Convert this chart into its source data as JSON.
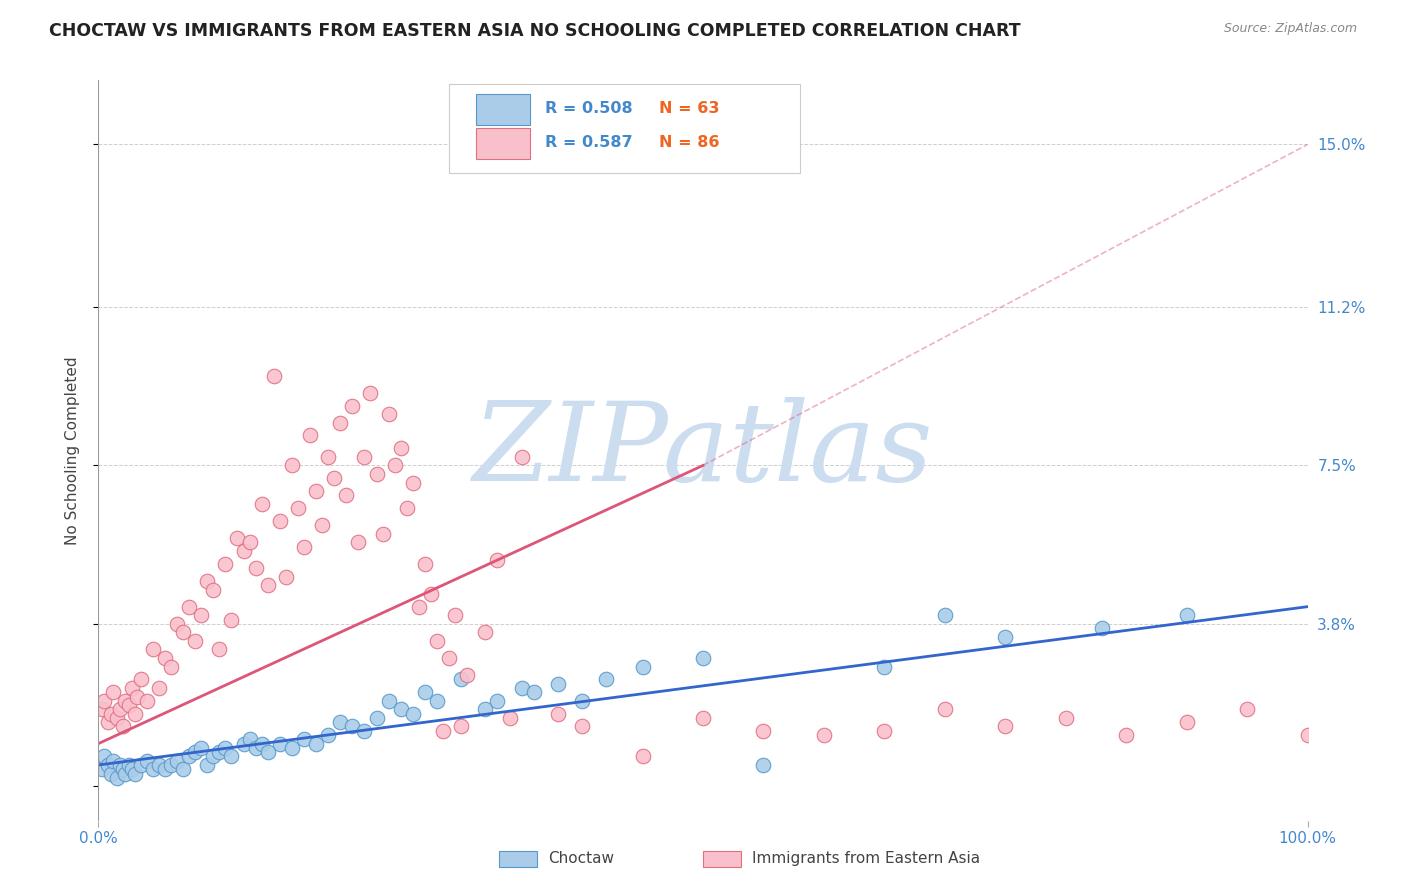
{
  "title": "CHOCTAW VS IMMIGRANTS FROM EASTERN ASIA NO SCHOOLING COMPLETED CORRELATION CHART",
  "source_text": "Source: ZipAtlas.com",
  "ylabel": "No Schooling Completed",
  "xlim": [
    0,
    100
  ],
  "ylim": [
    -0.8,
    16.5
  ],
  "yticks": [
    0.0,
    3.8,
    7.5,
    11.2,
    15.0
  ],
  "ytick_labels": [
    "",
    "3.8%",
    "7.5%",
    "11.2%",
    "15.0%"
  ],
  "xtick_labels": [
    "0.0%",
    "100.0%"
  ],
  "series": [
    {
      "name": "Choctaw",
      "R": "0.508",
      "N": 63,
      "dot_color": "#aacce8",
      "dot_edge": "#5599cc",
      "line_color": "#3366cc",
      "regression": [
        0,
        0.5,
        100,
        4.2
      ],
      "dashed": null,
      "points_x": [
        0.3,
        0.5,
        0.8,
        1.0,
        1.2,
        1.5,
        1.8,
        2.0,
        2.2,
        2.5,
        2.8,
        3.0,
        3.5,
        4.0,
        4.5,
        5.0,
        5.5,
        6.0,
        6.5,
        7.0,
        7.5,
        8.0,
        8.5,
        9.0,
        9.5,
        10.0,
        10.5,
        11.0,
        12.0,
        12.5,
        13.0,
        13.5,
        14.0,
        15.0,
        16.0,
        17.0,
        18.0,
        19.0,
        20.0,
        21.0,
        22.0,
        23.0,
        24.0,
        25.0,
        26.0,
        27.0,
        28.0,
        30.0,
        32.0,
        33.0,
        35.0,
        36.0,
        38.0,
        40.0,
        42.0,
        45.0,
        50.0,
        55.0,
        65.0,
        70.0,
        75.0,
        83.0,
        90.0
      ],
      "points_y": [
        0.4,
        0.7,
        0.5,
        0.3,
        0.6,
        0.2,
        0.5,
        0.4,
        0.3,
        0.5,
        0.4,
        0.3,
        0.5,
        0.6,
        0.4,
        0.5,
        0.4,
        0.5,
        0.6,
        0.4,
        0.7,
        0.8,
        0.9,
        0.5,
        0.7,
        0.8,
        0.9,
        0.7,
        1.0,
        1.1,
        0.9,
        1.0,
        0.8,
        1.0,
        0.9,
        1.1,
        1.0,
        1.2,
        1.5,
        1.4,
        1.3,
        1.6,
        2.0,
        1.8,
        1.7,
        2.2,
        2.0,
        2.5,
        1.8,
        2.0,
        2.3,
        2.2,
        2.4,
        2.0,
        2.5,
        2.8,
        3.0,
        0.5,
        2.8,
        4.0,
        3.5,
        3.7,
        4.0
      ]
    },
    {
      "name": "Immigrants from Eastern Asia",
      "R": "0.587",
      "N": 86,
      "dot_color": "#f9c0cc",
      "dot_edge": "#e07080",
      "line_color": "#dd5577",
      "regression": [
        0,
        1.0,
        50,
        7.5
      ],
      "dashed": [
        0,
        1.0,
        100,
        15.0
      ],
      "points_x": [
        0.3,
        0.5,
        0.8,
        1.0,
        1.2,
        1.5,
        1.8,
        2.0,
        2.2,
        2.5,
        2.8,
        3.0,
        3.2,
        3.5,
        4.0,
        4.5,
        5.0,
        5.5,
        6.0,
        6.5,
        7.0,
        7.5,
        8.0,
        8.5,
        9.0,
        9.5,
        10.0,
        10.5,
        11.0,
        11.5,
        12.0,
        12.5,
        13.0,
        13.5,
        14.0,
        14.5,
        15.0,
        15.5,
        16.0,
        16.5,
        17.0,
        17.5,
        18.0,
        18.5,
        19.0,
        19.5,
        20.0,
        20.5,
        21.0,
        21.5,
        22.0,
        22.5,
        23.0,
        23.5,
        24.0,
        24.5,
        25.0,
        25.5,
        26.0,
        26.5,
        27.0,
        27.5,
        28.0,
        28.5,
        29.0,
        29.5,
        30.0,
        30.5,
        32.0,
        33.0,
        34.0,
        35.0,
        38.0,
        40.0,
        45.0,
        50.0,
        55.0,
        60.0,
        65.0,
        70.0,
        75.0,
        80.0,
        85.0,
        90.0,
        95.0,
        100.0
      ],
      "points_y": [
        1.8,
        2.0,
        1.5,
        1.7,
        2.2,
        1.6,
        1.8,
        1.4,
        2.0,
        1.9,
        2.3,
        1.7,
        2.1,
        2.5,
        2.0,
        3.2,
        2.3,
        3.0,
        2.8,
        3.8,
        3.6,
        4.2,
        3.4,
        4.0,
        4.8,
        4.6,
        3.2,
        5.2,
        3.9,
        5.8,
        5.5,
        5.7,
        5.1,
        6.6,
        4.7,
        9.6,
        6.2,
        4.9,
        7.5,
        6.5,
        5.6,
        8.2,
        6.9,
        6.1,
        7.7,
        7.2,
        8.5,
        6.8,
        8.9,
        5.7,
        7.7,
        9.2,
        7.3,
        5.9,
        8.7,
        7.5,
        7.9,
        6.5,
        7.1,
        4.2,
        5.2,
        4.5,
        3.4,
        1.3,
        3.0,
        4.0,
        1.4,
        2.6,
        3.6,
        5.3,
        1.6,
        7.7,
        1.7,
        1.4,
        0.7,
        1.6,
        1.3,
        1.2,
        1.3,
        1.8,
        1.4,
        1.6,
        1.2,
        1.5,
        1.8,
        1.2
      ]
    }
  ],
  "watermark": "ZIPatlas",
  "watermark_color": "#ccddf0",
  "background_color": "#ffffff",
  "grid_color": "#bbbbbb",
  "title_color": "#222222",
  "label_color": "#444444",
  "tick_color": "#4488cc",
  "legend_R_color": "#4488cc",
  "legend_N_color": "#ee6622"
}
